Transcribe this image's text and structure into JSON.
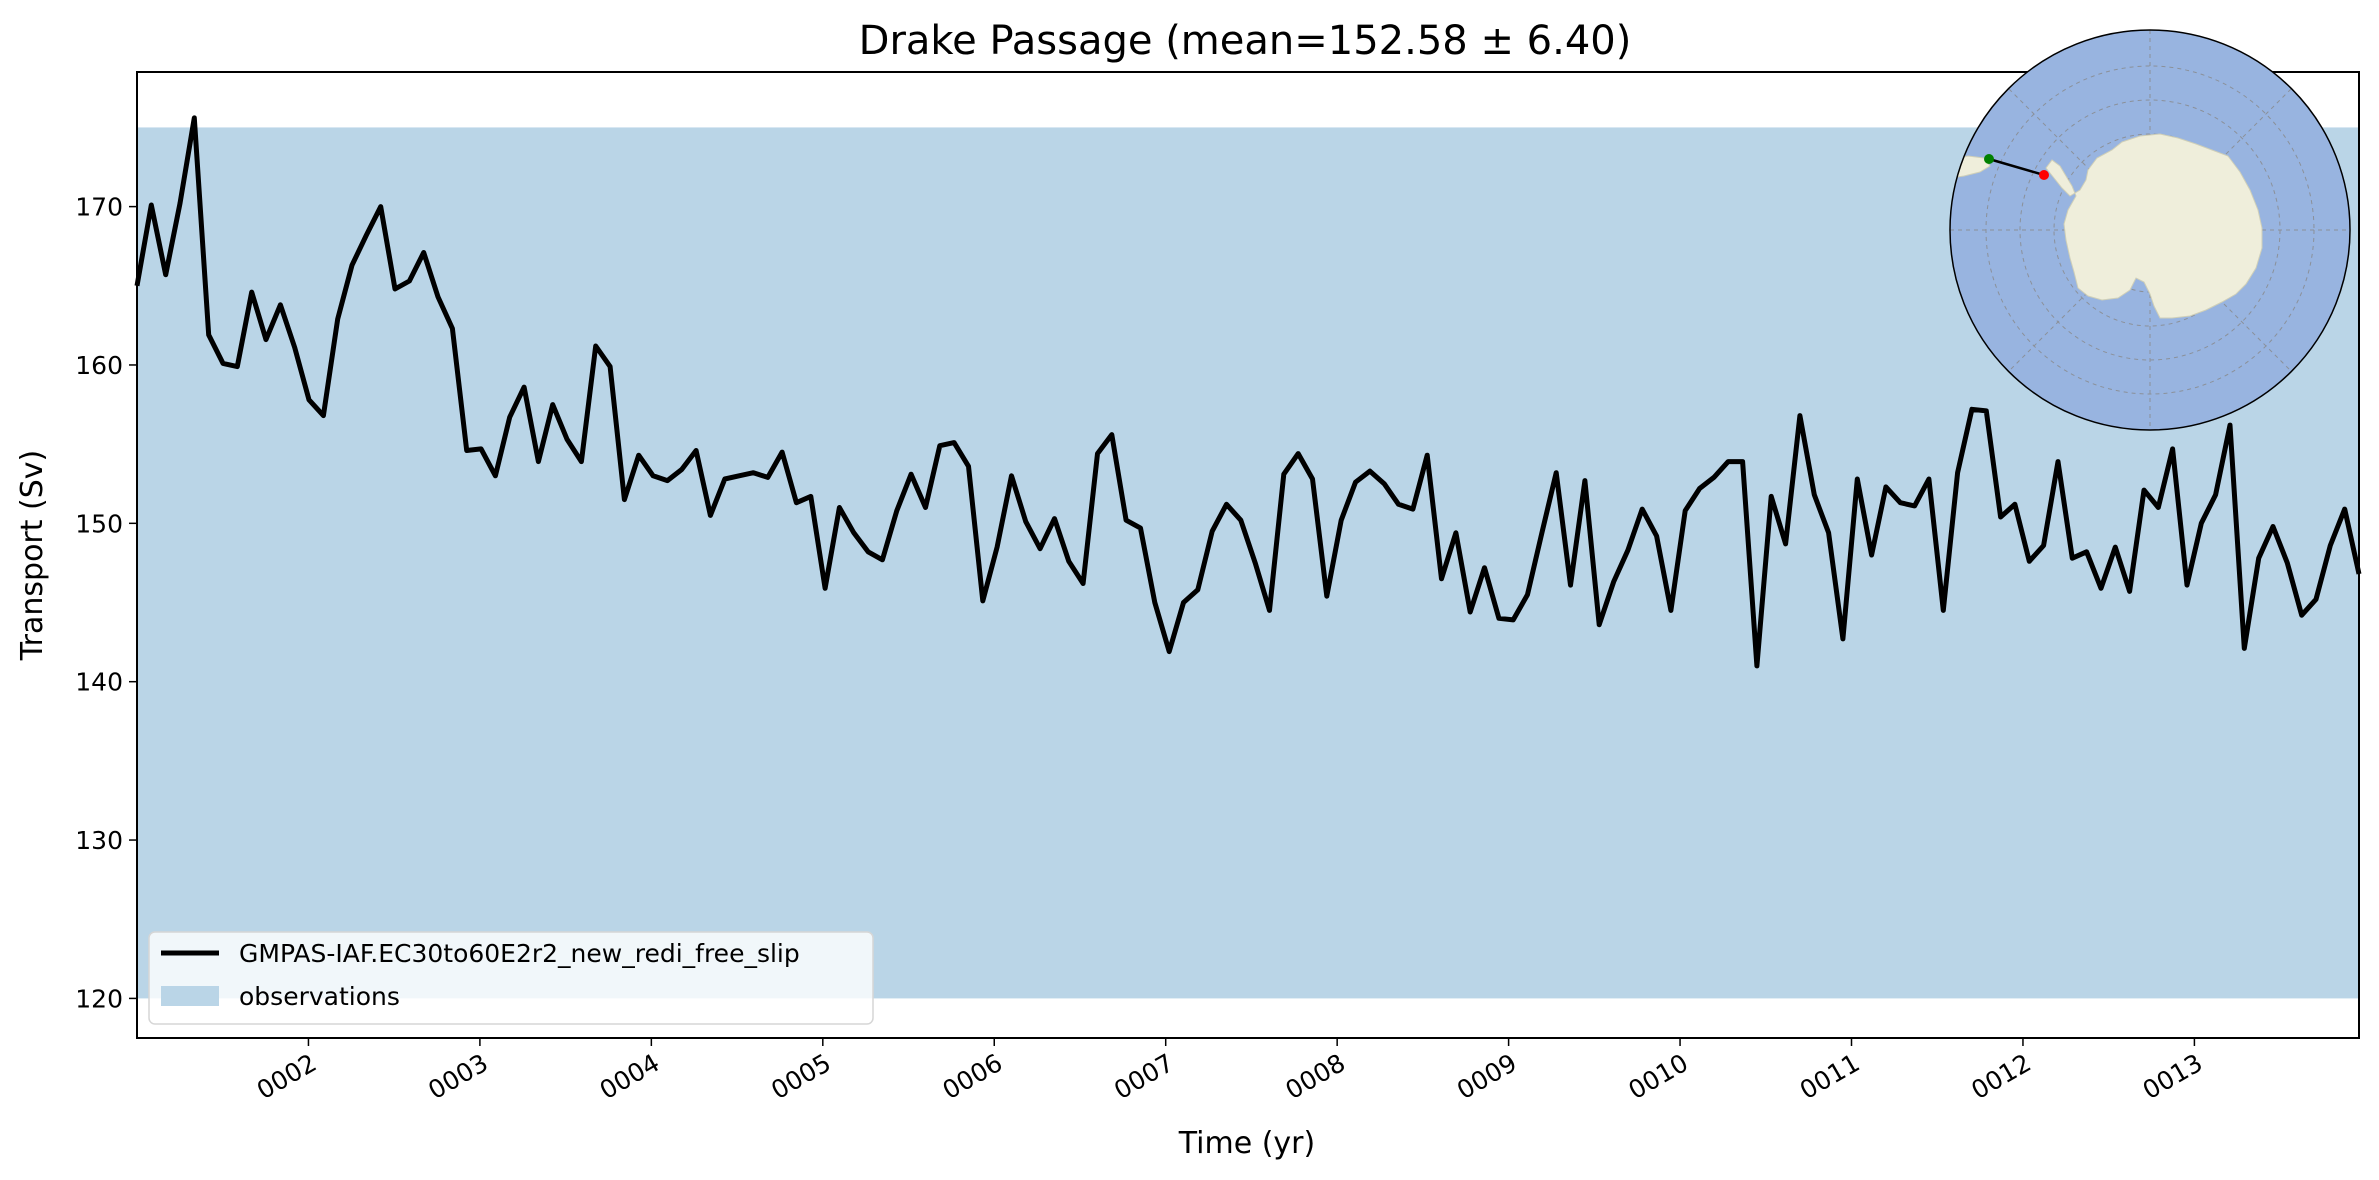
{
  "chart_data": {
    "type": "line",
    "title": "Drake Passage (mean=152.58 ± 6.40)",
    "xlabel": "Time (yr)",
    "ylabel": "Transport (Sv)",
    "ylim": [
      117.5,
      178.5
    ],
    "xlim": [
      1.0,
      13.96
    ],
    "y_ticks": [
      120,
      130,
      140,
      150,
      160,
      170
    ],
    "x_ticks": [
      {
        "value": 2,
        "label": "0002"
      },
      {
        "value": 3,
        "label": "0003"
      },
      {
        "value": 4,
        "label": "0004"
      },
      {
        "value": 5,
        "label": "0005"
      },
      {
        "value": 6,
        "label": "0006"
      },
      {
        "value": 7,
        "label": "0007"
      },
      {
        "value": 8,
        "label": "0008"
      },
      {
        "value": 9,
        "label": "0009"
      },
      {
        "value": 10,
        "label": "0010"
      },
      {
        "value": 11,
        "label": "0011"
      },
      {
        "value": 12,
        "label": "0012"
      },
      {
        "value": 13,
        "label": "0013"
      }
    ],
    "grid": false,
    "legend_position": "lower-left",
    "observations": {
      "name": "observations",
      "range": [
        120,
        175
      ],
      "color": "#bad5e7"
    },
    "series": [
      {
        "name": "GMPAS-IAF.EC30to60E2r2_new_redi_free_slip",
        "color": "#000000",
        "values": [
          165.0,
          170.1,
          165.7,
          170.2,
          175.6,
          161.9,
          160.1,
          159.9,
          164.6,
          161.6,
          163.8,
          161.1,
          157.8,
          156.8,
          162.9,
          166.3,
          168.2,
          170.0,
          164.8,
          165.3,
          167.1,
          164.3,
          162.3,
          154.6,
          154.7,
          153.0,
          156.7,
          158.6,
          153.9,
          157.5,
          155.3,
          153.9,
          161.2,
          159.9,
          151.5,
          154.3,
          153.0,
          152.7,
          153.4,
          154.6,
          150.5,
          152.8,
          153.0,
          153.2,
          152.9,
          154.5,
          151.3,
          151.7,
          145.9,
          151.0,
          149.4,
          148.2,
          147.7,
          150.8,
          153.1,
          151.0,
          154.9,
          155.1,
          153.6,
          145.1,
          148.5,
          153.0,
          150.1,
          148.4,
          150.3,
          147.6,
          146.2,
          154.4,
          155.6,
          150.2,
          149.7,
          145.0,
          141.9,
          145.0,
          145.8,
          149.5,
          151.2,
          150.2,
          147.5,
          144.5,
          153.1,
          154.4,
          152.8,
          145.4,
          150.2,
          152.6,
          153.3,
          152.5,
          151.2,
          150.9,
          154.3,
          146.5,
          149.4,
          144.4,
          147.2,
          144.0,
          143.9,
          145.5,
          149.4,
          153.2,
          146.1,
          152.7,
          143.6,
          146.3,
          148.3,
          150.9,
          149.2,
          144.5,
          150.8,
          152.2,
          152.9,
          153.9,
          153.9,
          141.0,
          151.7,
          148.7,
          156.8,
          151.8,
          149.4,
          142.7,
          152.8,
          148.0,
          152.3,
          151.3,
          151.1,
          152.8,
          144.5,
          153.2,
          157.2,
          157.1,
          150.4,
          151.2,
          147.6,
          148.6,
          153.9,
          147.8,
          148.2,
          145.9,
          148.5,
          145.7,
          152.1,
          151.0,
          154.7,
          146.1,
          150.0,
          151.8,
          156.2,
          142.1,
          147.8,
          149.8,
          147.5,
          144.2,
          145.2,
          148.6,
          150.9,
          146.8
        ]
      }
    ]
  },
  "inset_map": {
    "description_icon": "antarctica-polar-map-icon",
    "ocean_color": "#98b4e0",
    "land_color": "#efeedb",
    "start_point_color": "#008000",
    "end_point_color": "#ff0000"
  }
}
